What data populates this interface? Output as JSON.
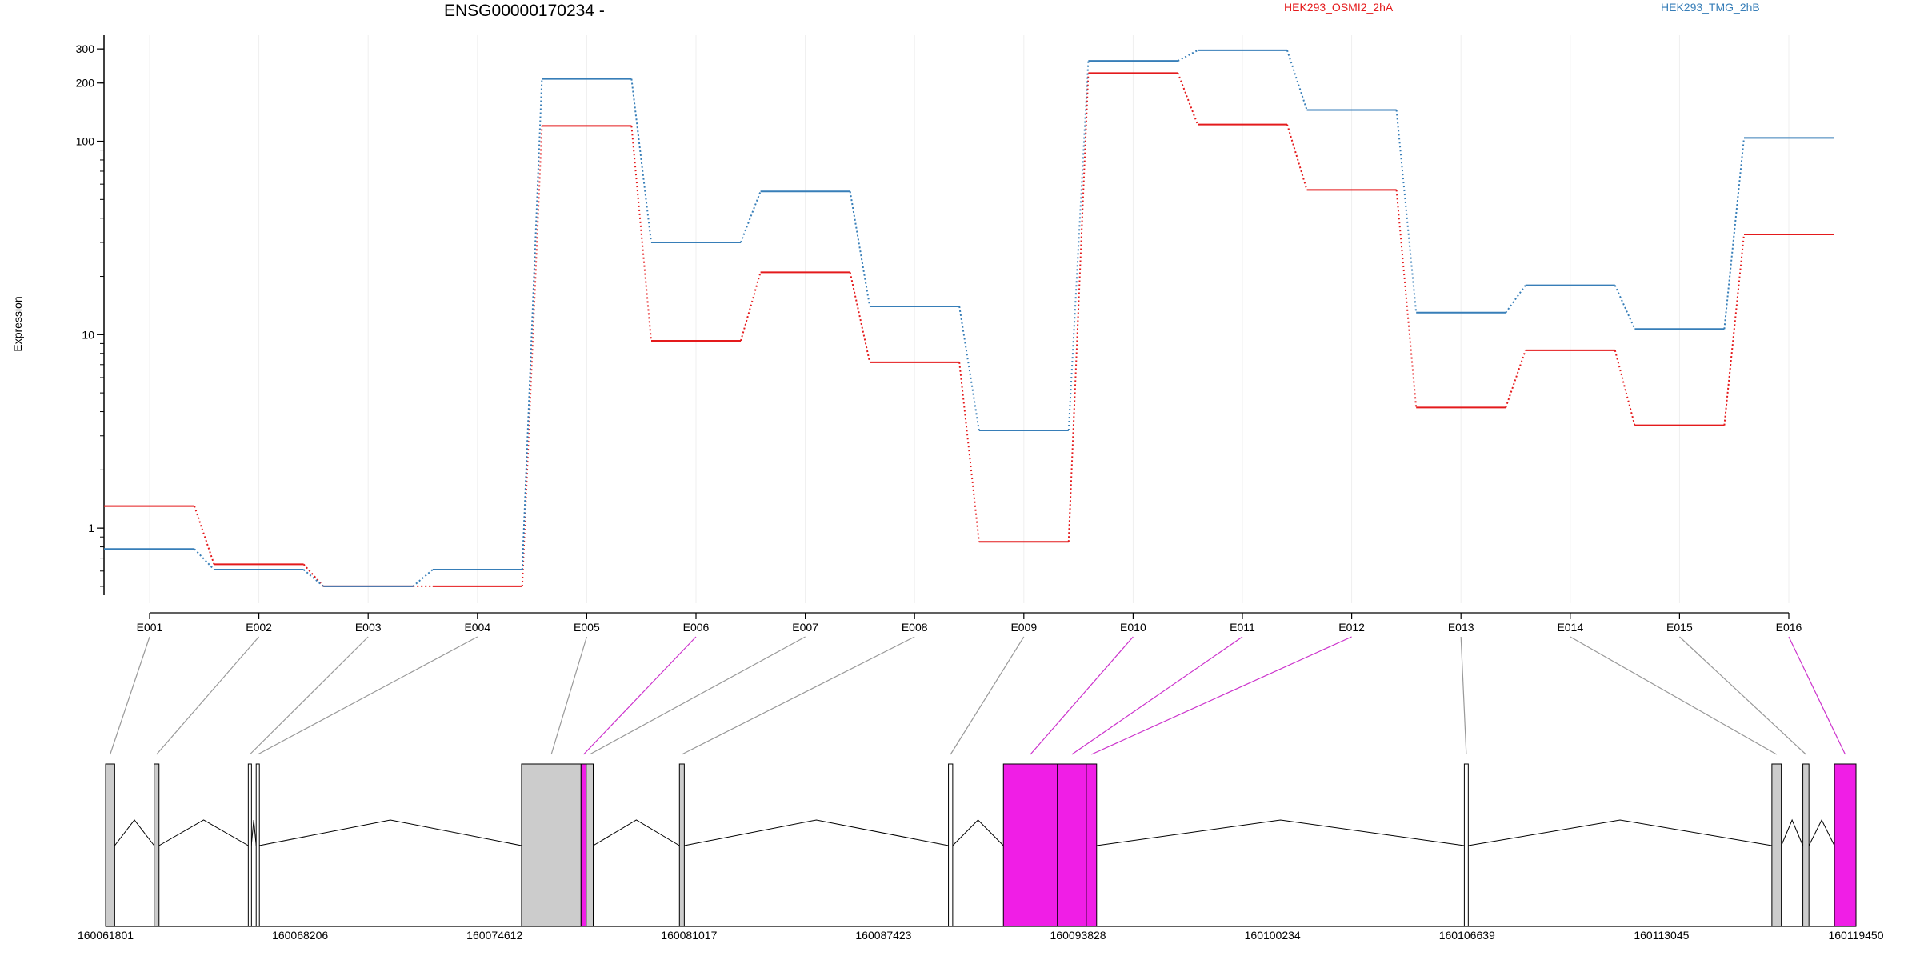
{
  "chart_data": {
    "type": "line",
    "title": "ENSG00000170234 -",
    "ylabel": "Expression",
    "yscale": "log",
    "yticks": [
      "1",
      "10",
      "100",
      "200",
      "300"
    ],
    "categories": [
      "E001",
      "E002",
      "E003",
      "E004",
      "E005",
      "E006",
      "E007",
      "E008",
      "E009",
      "E010",
      "E011",
      "E012",
      "E013",
      "E014",
      "E015",
      "E016"
    ],
    "series": [
      {
        "name": "HEK293_OSMI2_2hA",
        "color": "#e41a1c",
        "values": [
          1.3,
          0.65,
          0.5,
          0.5,
          120,
          9.3,
          21,
          7.2,
          0.85,
          225,
          122,
          56,
          4.2,
          8.3,
          3.4,
          33
        ]
      },
      {
        "name": "HEK293_TMG_2hB",
        "color": "#377eb8",
        "values": [
          0.78,
          0.61,
          0.5,
          0.61,
          210,
          30,
          55,
          14,
          3.2,
          260,
          295,
          145,
          13,
          18,
          10.7,
          104
        ]
      }
    ],
    "gene_model": {
      "coordinate_labels": [
        "160061801",
        "160068206",
        "160074612",
        "160081017",
        "160087423",
        "160093828",
        "160100234",
        "160106639",
        "160113045",
        "160119450"
      ],
      "range": [
        160061801,
        160119450
      ],
      "exons": [
        {
          "id": "E001",
          "start": 160061801,
          "end": 160062100,
          "highlight": false
        },
        {
          "id": "E002",
          "start": 160063400,
          "end": 160063560,
          "highlight": false
        },
        {
          "id": "E003",
          "start": 160066500,
          "end": 160066600,
          "highlight": false
        },
        {
          "id": "E004",
          "start": 160066760,
          "end": 160066860,
          "highlight": false
        },
        {
          "id": "E005",
          "start": 160075500,
          "end": 160077460,
          "highlight": false
        },
        {
          "id": "E006",
          "start": 160077460,
          "end": 160077630,
          "highlight": true
        },
        {
          "id": "E007",
          "start": 160077630,
          "end": 160077860,
          "highlight": false
        },
        {
          "id": "E008",
          "start": 160080700,
          "end": 160080860,
          "highlight": false
        },
        {
          "id": "E009",
          "start": 160089560,
          "end": 160089700,
          "highlight": false
        },
        {
          "id": "E010",
          "start": 160091370,
          "end": 160093150,
          "highlight": true
        },
        {
          "id": "E011",
          "start": 160093150,
          "end": 160094100,
          "highlight": true
        },
        {
          "id": "E012",
          "start": 160094100,
          "end": 160094440,
          "highlight": true
        },
        {
          "id": "E013",
          "start": 160106550,
          "end": 160106680,
          "highlight": false
        },
        {
          "id": "E014",
          "start": 160116680,
          "end": 160116990,
          "highlight": false
        },
        {
          "id": "E015",
          "start": 160117700,
          "end": 160117900,
          "highlight": false
        },
        {
          "id": "E016",
          "start": 160118740,
          "end": 160119450,
          "highlight": true
        }
      ]
    }
  },
  "colors": {
    "series_a": "#e41a1c",
    "series_b": "#377eb8",
    "highlight_exon": "#f01ee6",
    "exon": "#cccccc"
  }
}
